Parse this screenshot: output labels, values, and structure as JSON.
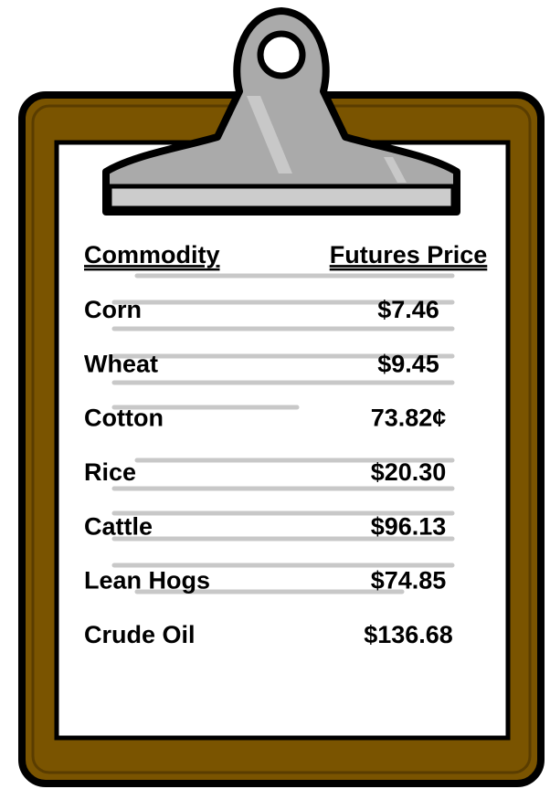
{
  "table": {
    "headers": [
      "Commodity",
      "Futures Price"
    ],
    "rows": [
      [
        "Corn",
        "$7.46"
      ],
      [
        "Wheat",
        "$9.45"
      ],
      [
        "Cotton",
        "73.82¢"
      ],
      [
        "Rice",
        "$20.30"
      ],
      [
        "Cattle",
        "$96.13"
      ],
      [
        "Lean Hogs",
        "$74.85"
      ],
      [
        "Crude Oil",
        "$136.68"
      ]
    ]
  }
}
